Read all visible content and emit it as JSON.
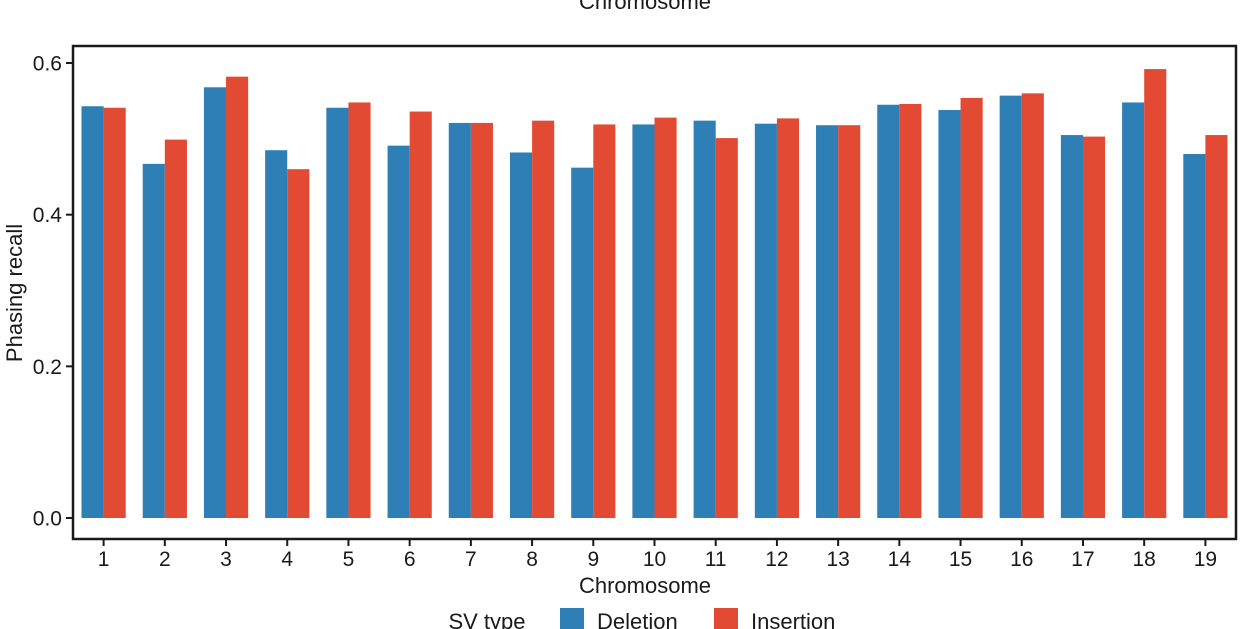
{
  "chart_data": {
    "type": "bar",
    "top_label": "Chromosome",
    "xlabel": "Chromosome",
    "ylabel": "Phasing recall",
    "ylim": [
      0,
      0.62
    ],
    "yticks": [
      "0.0",
      "0.2",
      "0.4",
      "0.6"
    ],
    "categories": [
      "1",
      "2",
      "3",
      "4",
      "5",
      "6",
      "7",
      "8",
      "9",
      "10",
      "11",
      "12",
      "13",
      "14",
      "15",
      "16",
      "17",
      "18",
      "19"
    ],
    "series": [
      {
        "name": "Deletion",
        "color": "#2f7fb7",
        "values": [
          0.543,
          0.467,
          0.568,
          0.485,
          0.541,
          0.491,
          0.521,
          0.482,
          0.462,
          0.519,
          0.524,
          0.52,
          0.518,
          0.545,
          0.538,
          0.557,
          0.505,
          0.548,
          0.48
        ]
      },
      {
        "name": "Insertion",
        "color": "#e34a33",
        "values": [
          0.541,
          0.499,
          0.582,
          0.46,
          0.548,
          0.536,
          0.521,
          0.524,
          0.519,
          0.528,
          0.501,
          0.527,
          0.518,
          0.546,
          0.554,
          0.56,
          0.503,
          0.592,
          0.505
        ]
      }
    ],
    "legend": {
      "title": "SV type",
      "position": "bottom"
    }
  }
}
